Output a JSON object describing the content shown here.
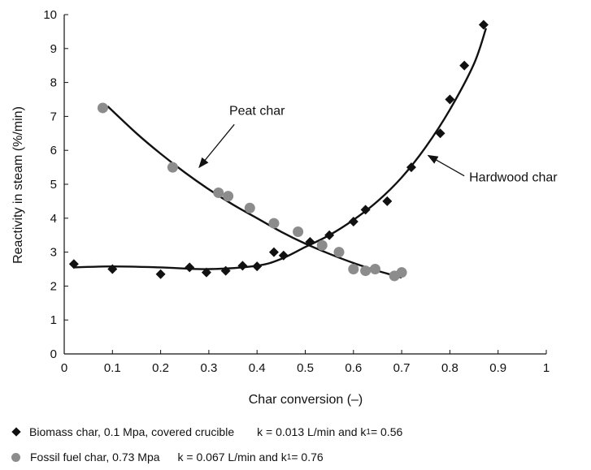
{
  "chart_data": {
    "type": "scatter",
    "xlabel": "Char conversion (–)",
    "ylabel": "Reactivity in steam (%/min)",
    "xlim": [
      0,
      1
    ],
    "ylim": [
      0,
      10
    ],
    "xticks": [
      "0",
      "0.1",
      "0.2",
      "0.3",
      "0.4",
      "0.5",
      "0.6",
      "0.7",
      "0.8",
      "0.9",
      "1"
    ],
    "yticks": [
      "0",
      "1",
      "2",
      "3",
      "4",
      "5",
      "6",
      "7",
      "8",
      "9",
      "10"
    ],
    "grid": false,
    "series": [
      {
        "name": "Biomass char, 0.1 Mpa, covered crucible",
        "marker": "diamond",
        "color": "#111111",
        "points": [
          [
            0.02,
            2.65
          ],
          [
            0.1,
            2.5
          ],
          [
            0.2,
            2.35
          ],
          [
            0.26,
            2.55
          ],
          [
            0.295,
            2.4
          ],
          [
            0.335,
            2.45
          ],
          [
            0.37,
            2.6
          ],
          [
            0.4,
            2.58
          ],
          [
            0.435,
            3.0
          ],
          [
            0.455,
            2.9
          ],
          [
            0.51,
            3.3
          ],
          [
            0.55,
            3.5
          ],
          [
            0.6,
            3.9
          ],
          [
            0.625,
            4.25
          ],
          [
            0.67,
            4.5
          ],
          [
            0.72,
            5.5
          ],
          [
            0.78,
            6.5
          ],
          [
            0.8,
            7.5
          ],
          [
            0.83,
            8.5
          ],
          [
            0.87,
            9.7
          ]
        ]
      },
      {
        "name": "Fossil fuel char, 0.73 Mpa",
        "marker": "circle",
        "color": "#8c8c8c",
        "points": [
          [
            0.08,
            7.25
          ],
          [
            0.225,
            5.5
          ],
          [
            0.32,
            4.75
          ],
          [
            0.34,
            4.65
          ],
          [
            0.385,
            4.3
          ],
          [
            0.435,
            3.85
          ],
          [
            0.485,
            3.6
          ],
          [
            0.535,
            3.2
          ],
          [
            0.57,
            3.0
          ],
          [
            0.6,
            2.5
          ],
          [
            0.625,
            2.45
          ],
          [
            0.645,
            2.5
          ],
          [
            0.685,
            2.3
          ],
          [
            0.7,
            2.4
          ]
        ]
      }
    ],
    "fit_curves": [
      {
        "series": "Biomass char, 0.1 Mpa, covered crucible",
        "points": [
          [
            0.02,
            2.55
          ],
          [
            0.1,
            2.58
          ],
          [
            0.2,
            2.55
          ],
          [
            0.3,
            2.5
          ],
          [
            0.4,
            2.6
          ],
          [
            0.45,
            2.8
          ],
          [
            0.5,
            3.15
          ],
          [
            0.55,
            3.5
          ],
          [
            0.6,
            3.95
          ],
          [
            0.65,
            4.5
          ],
          [
            0.7,
            5.2
          ],
          [
            0.75,
            6.1
          ],
          [
            0.8,
            7.2
          ],
          [
            0.85,
            8.55
          ],
          [
            0.875,
            9.6
          ]
        ]
      },
      {
        "series": "Fossil fuel char, 0.73 Mpa",
        "points": [
          [
            0.09,
            7.3
          ],
          [
            0.15,
            6.5
          ],
          [
            0.2,
            5.9
          ],
          [
            0.25,
            5.35
          ],
          [
            0.3,
            4.85
          ],
          [
            0.35,
            4.4
          ],
          [
            0.4,
            4.0
          ],
          [
            0.45,
            3.6
          ],
          [
            0.5,
            3.25
          ],
          [
            0.55,
            2.95
          ],
          [
            0.6,
            2.68
          ],
          [
            0.65,
            2.45
          ],
          [
            0.7,
            2.25
          ]
        ]
      }
    ],
    "annotations": [
      {
        "text": "Peat char",
        "label_at": [
          0.4,
          7.05
        ],
        "arrow_to": [
          0.28,
          5.5
        ]
      },
      {
        "text": "Hardwood char",
        "label_at": [
          0.84,
          5.2
        ],
        "arrow_to": [
          0.755,
          5.85
        ]
      }
    ],
    "legend": [
      {
        "marker": "diamond",
        "text": "Biomass char, 0.1 Mpa, covered crucible",
        "k_text": "k = 0.013 L/min and k",
        "k_sub": "1",
        "k_tail": " = 0.56"
      },
      {
        "marker": "circle",
        "text": "Fossil fuel char, 0.73 Mpa",
        "k_text": "k = 0.067 L/min and k",
        "k_sub": "1",
        "k_tail": " = 0.76"
      }
    ]
  }
}
